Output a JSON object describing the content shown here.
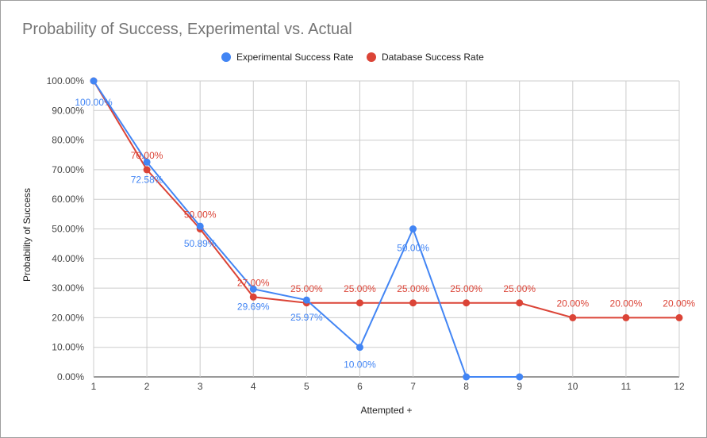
{
  "chart_data": {
    "type": "line",
    "title": "Probability of Success, Experimental vs. Actual",
    "xlabel": "Attempted +",
    "ylabel": "Probability of Success",
    "ylim": [
      0,
      1
    ],
    "yticks": [
      "0.00%",
      "10.00%",
      "20.00%",
      "30.00%",
      "40.00%",
      "50.00%",
      "60.00%",
      "70.00%",
      "80.00%",
      "90.00%",
      "100.00%"
    ],
    "x": [
      1,
      2,
      3,
      4,
      5,
      6,
      7,
      8,
      9,
      10,
      11,
      12
    ],
    "grid": true,
    "legend_position": "top",
    "series": [
      {
        "name": "Experimental Success Rate",
        "color": "#4285f4",
        "values": [
          1.0,
          0.7258,
          0.5089,
          0.2969,
          0.2597,
          0.1,
          0.5,
          0.0,
          0.0,
          null,
          null,
          null
        ],
        "labels": [
          "100.00%",
          "72.58%",
          "50.89%",
          "29.69%",
          "25.97%",
          "10.00%",
          "50.00%",
          "",
          "",
          "",
          "",
          ""
        ]
      },
      {
        "name": "Database Success Rate",
        "color": "#db4437",
        "values": [
          1.0,
          0.7,
          0.5,
          0.27,
          0.25,
          0.25,
          0.25,
          0.25,
          0.25,
          0.2,
          0.2,
          0.2
        ],
        "labels": [
          "",
          "70.00%",
          "50.00%",
          "27.00%",
          "25.00%",
          "25.00%",
          "25.00%",
          "25.00%",
          "25.00%",
          "20.00%",
          "20.00%",
          "20.00%"
        ]
      }
    ]
  }
}
